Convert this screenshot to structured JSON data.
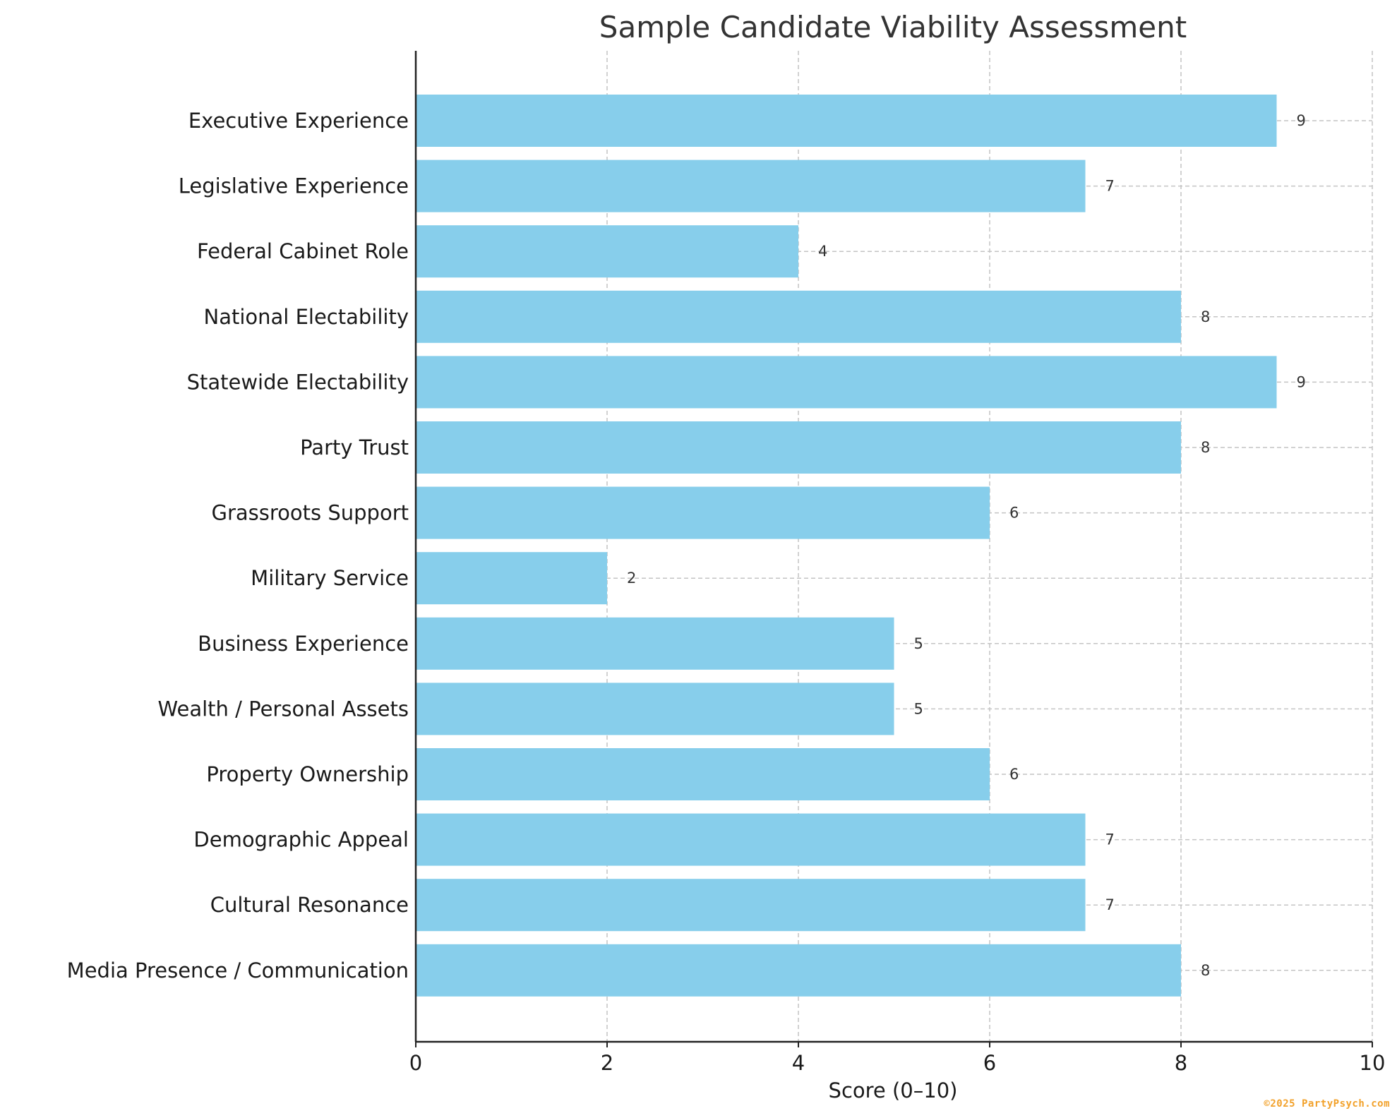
{
  "watermark": "©2025 PartyPsych.com",
  "colors": {
    "bar": "#87ceeb",
    "grid": "#c4c4c4",
    "axis": "#222222",
    "label": "#1a1a1a",
    "title": "#333333",
    "watermark": "#f2a12a"
  },
  "chart_data": {
    "type": "bar",
    "orientation": "horizontal",
    "title": "Sample Candidate Viability Assessment",
    "xlabel": "Score (0–10)",
    "ylabel": "",
    "xlim": [
      0,
      10
    ],
    "xticks": [
      "0",
      "2",
      "4",
      "6",
      "8",
      "10"
    ],
    "grid": true,
    "categories": [
      "Executive Experience",
      "Legislative Experience",
      "Federal Cabinet Role",
      "National Electability",
      "Statewide Electability",
      "Party Trust",
      "Grassroots Support",
      "Military Service",
      "Business Experience",
      "Wealth / Personal Assets",
      "Property Ownership",
      "Demographic Appeal",
      "Cultural Resonance",
      "Media Presence / Communication"
    ],
    "values": [
      9,
      7,
      4,
      8,
      9,
      8,
      6,
      2,
      5,
      5,
      6,
      7,
      7,
      8
    ],
    "data_labels": [
      "9",
      "7",
      "4",
      "8",
      "9",
      "8",
      "6",
      "2",
      "5",
      "5",
      "6",
      "7",
      "7",
      "8"
    ]
  }
}
